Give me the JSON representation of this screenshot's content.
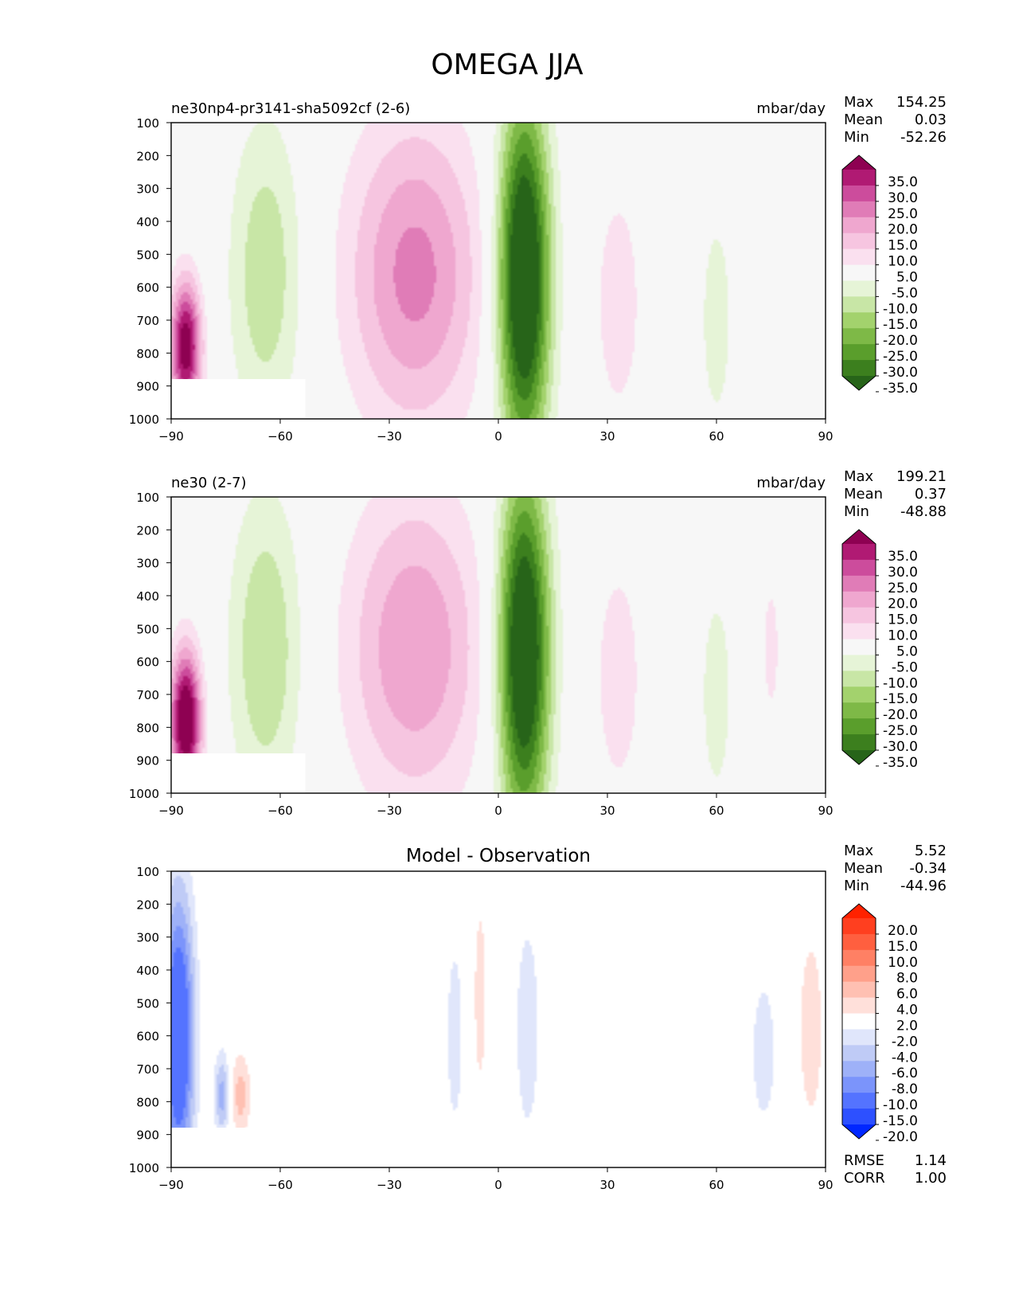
{
  "chart_data": {
    "type": "heatmap",
    "title": "OMEGA JJA",
    "x_ticks": [
      "−90",
      "−60",
      "−30",
      "0",
      "30",
      "60",
      "90"
    ],
    "x_range": [
      -90,
      90
    ],
    "y_ticks": [
      "100",
      "200",
      "300",
      "400",
      "500",
      "600",
      "700",
      "800",
      "900",
      "1000"
    ],
    "y_range": [
      100,
      1000
    ],
    "panels": [
      {
        "id": "test",
        "title_left": "ne30np4-pr3141-sha5092cf (2-6)",
        "title_center": "",
        "units": "mbar/day",
        "stats": [
          {
            "label": "Max",
            "value": "154.25"
          },
          {
            "label": "Mean",
            "value": "0.03"
          },
          {
            "label": "Min",
            "value": "-52.26"
          }
        ],
        "colorbar": {
          "scheme": "pinkgreen",
          "colors": [
            "#276419",
            "#3c7f1e",
            "#5a9e2c",
            "#7eb947",
            "#a3d26d",
            "#c8e6a6",
            "#e6f4d7",
            "#f7f7f7",
            "#fae0ef",
            "#f6c5e0",
            "#efa7cf",
            "#e07cb7",
            "#cc4c9c",
            "#b01a73",
            "#8e0152"
          ],
          "labels": [
            "35.0",
            "30.0",
            "25.0",
            "20.0",
            "15.0",
            "10.0",
            "5.0",
            "-5.0",
            "-10.0",
            "-15.0",
            "-20.0",
            "-25.0",
            "-30.0",
            "-35.0"
          ]
        },
        "features": [
          {
            "lat": -23,
            "p": 560,
            "w": 13,
            "h": 330,
            "v": 22,
            "name": "subtropical-descent"
          },
          {
            "lat": 7,
            "p": 570,
            "w": 5,
            "h": 380,
            "v": -50,
            "name": "itcz-ascent"
          },
          {
            "lat": -64,
            "p": 560,
            "w": 7,
            "h": 330,
            "v": -14,
            "name": "midlat-ascent"
          },
          {
            "lat": -86,
            "p": 780,
            "w": 3,
            "h": 140,
            "v": 40,
            "name": "antarctic-descent"
          },
          {
            "lat": 33,
            "p": 650,
            "w": 5,
            "h": 280,
            "v": 8,
            "name": "nh-descent"
          },
          {
            "lat": 60,
            "p": 700,
            "w": 4,
            "h": 300,
            "v": -7,
            "name": "nh-midlat-ascent"
          }
        ]
      },
      {
        "id": "reference",
        "title_left": "ne30 (2-7)",
        "title_center": "",
        "units": "mbar/day",
        "stats": [
          {
            "label": "Max",
            "value": "199.21"
          },
          {
            "label": "Mean",
            "value": "0.37"
          },
          {
            "label": "Min",
            "value": "-48.88"
          }
        ],
        "colorbar": {
          "scheme": "pinkgreen",
          "colors": [
            "#276419",
            "#3c7f1e",
            "#5a9e2c",
            "#7eb947",
            "#a3d26d",
            "#c8e6a6",
            "#e6f4d7",
            "#f7f7f7",
            "#fae0ef",
            "#f6c5e0",
            "#efa7cf",
            "#e07cb7",
            "#cc4c9c",
            "#b01a73",
            "#8e0152"
          ],
          "labels": [
            "35.0",
            "30.0",
            "25.0",
            "20.0",
            "15.0",
            "10.0",
            "5.0",
            "-5.0",
            "-10.0",
            "-15.0",
            "-20.0",
            "-25.0",
            "-30.0",
            "-35.0"
          ]
        },
        "features": [
          {
            "lat": -23,
            "p": 560,
            "w": 13,
            "h": 330,
            "v": 20,
            "name": "subtropical-descent"
          },
          {
            "lat": 7,
            "p": 570,
            "w": 5,
            "h": 380,
            "v": -48,
            "name": "itcz-ascent"
          },
          {
            "lat": -64,
            "p": 560,
            "w": 7,
            "h": 330,
            "v": -15,
            "name": "midlat-ascent"
          },
          {
            "lat": -86,
            "p": 780,
            "w": 3,
            "h": 150,
            "v": 45,
            "name": "antarctic-descent"
          },
          {
            "lat": 33,
            "p": 650,
            "w": 5,
            "h": 280,
            "v": 8,
            "name": "nh-descent"
          },
          {
            "lat": 60,
            "p": 700,
            "w": 4,
            "h": 300,
            "v": -7,
            "name": "nh-midlat-ascent"
          },
          {
            "lat": 75,
            "p": 560,
            "w": 2,
            "h": 180,
            "v": 7,
            "name": "polar-descent"
          }
        ]
      },
      {
        "id": "diff",
        "title_left": "",
        "title_center": "Model - Observation",
        "units": "",
        "stats": [
          {
            "label": "Max",
            "value": "5.52"
          },
          {
            "label": "Mean",
            "value": "-0.34"
          },
          {
            "label": "Min",
            "value": "-44.96"
          }
        ],
        "extra_stats": [
          {
            "label": "RMSE",
            "value": "1.14"
          },
          {
            "label": "CORR",
            "value": "1.00"
          }
        ],
        "colorbar": {
          "scheme": "bluered",
          "colors": [
            "#0027ff",
            "#2d50ff",
            "#5473ff",
            "#7b94fb",
            "#9eb1f8",
            "#bfcbf6",
            "#e0e6fb",
            "#ffffff",
            "#ffe0da",
            "#ffc0b2",
            "#ffa08a",
            "#ff8064",
            "#ff5f3f",
            "#ff3f1f",
            "#ff2200"
          ],
          "labels": [
            "20.0",
            "15.0",
            "10.0",
            "8.0",
            "6.0",
            "4.0",
            "2.0",
            "-2.0",
            "-4.0",
            "-6.0",
            "-8.0",
            "-10.0",
            "-15.0",
            "-20.0"
          ]
        },
        "features": [
          {
            "lat": -88,
            "p": 600,
            "w": 3,
            "h": 300,
            "v": -15,
            "name": "antarctic-bias"
          },
          {
            "lat": -76,
            "p": 780,
            "w": 1.5,
            "h": 90,
            "v": -7,
            "name": "coastal-bias"
          },
          {
            "lat": -71,
            "p": 780,
            "w": 2,
            "h": 90,
            "v": 5,
            "name": "coastal-positive-bias"
          },
          {
            "lat": -12,
            "p": 600,
            "w": 2,
            "h": 250,
            "v": -3,
            "name": "tropical-negative-bias"
          },
          {
            "lat": -5,
            "p": 480,
            "w": 1.5,
            "h": 250,
            "v": 3,
            "name": "tropical-positive-bias"
          },
          {
            "lat": 8,
            "p": 580,
            "w": 3,
            "h": 300,
            "v": -3,
            "name": "itcz-bias"
          },
          {
            "lat": 73,
            "p": 650,
            "w": 3,
            "h": 200,
            "v": -3,
            "name": "nh-polar-negative-bias"
          },
          {
            "lat": 86,
            "p": 580,
            "w": 3,
            "h": 260,
            "v": 3,
            "name": "nh-polar-positive-bias"
          }
        ]
      }
    ]
  }
}
